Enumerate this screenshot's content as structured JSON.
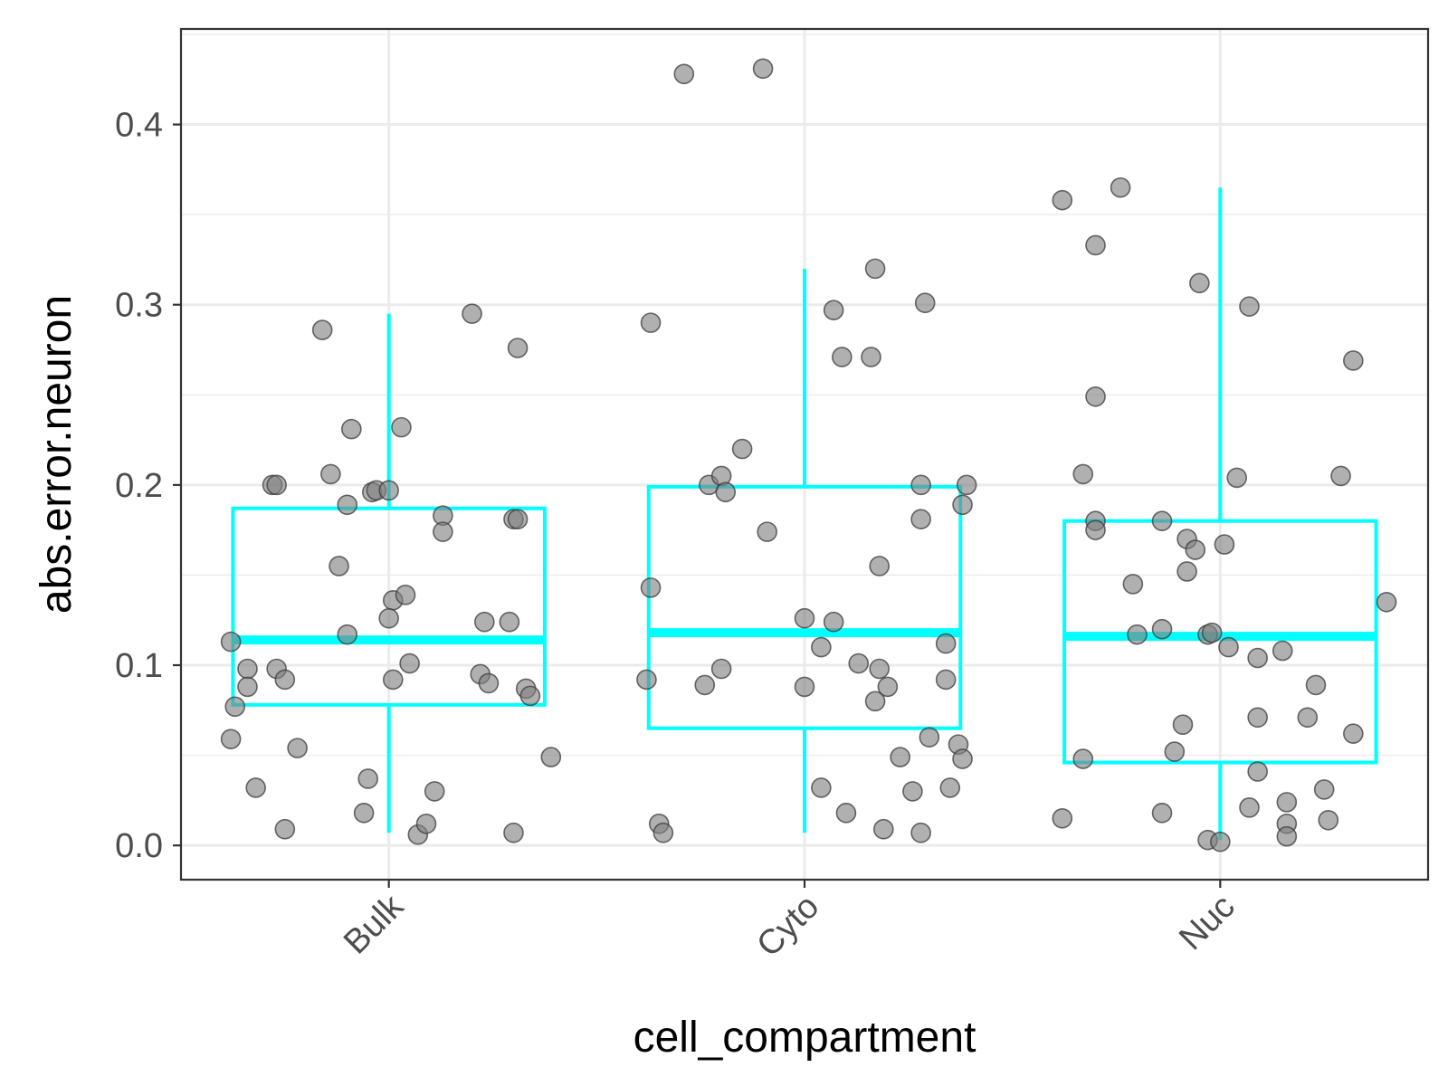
{
  "chart_data": {
    "type": "boxplot-jitter",
    "xlabel": "cell_compartment",
    "ylabel": "abs.error.neuron",
    "categories": [
      "Bulk",
      "Cyto",
      "Nuc"
    ],
    "ylim": [
      -0.019,
      0.453
    ],
    "yticks": [
      {
        "value": 0.0,
        "label": "0.0"
      },
      {
        "value": 0.1,
        "label": "0.1"
      },
      {
        "value": 0.2,
        "label": "0.2"
      },
      {
        "value": 0.3,
        "label": "0.3"
      },
      {
        "value": 0.4,
        "label": "0.4"
      }
    ],
    "grid": true,
    "box_color": "#00FFFF",
    "point_color": "#808080",
    "boxes": [
      {
        "category": "Bulk",
        "whisker_low": 0.007,
        "q1": 0.078,
        "median": 0.114,
        "q3": 0.187,
        "whisker_high": 0.295
      },
      {
        "category": "Cyto",
        "whisker_low": 0.007,
        "q1": 0.065,
        "median": 0.118,
        "q3": 0.199,
        "whisker_high": 0.32
      },
      {
        "category": "Nuc",
        "whisker_low": 0.003,
        "q1": 0.046,
        "median": 0.116,
        "q3": 0.18,
        "whisker_high": 0.365
      }
    ],
    "points": [
      {
        "category": "Bulk",
        "jitter": -0.38,
        "y": 0.113
      },
      {
        "category": "Bulk",
        "jitter": -0.37,
        "y": 0.077
      },
      {
        "category": "Bulk",
        "jitter": -0.38,
        "y": 0.059
      },
      {
        "category": "Bulk",
        "jitter": -0.34,
        "y": 0.098
      },
      {
        "category": "Bulk",
        "jitter": -0.34,
        "y": 0.088
      },
      {
        "category": "Bulk",
        "jitter": -0.32,
        "y": 0.032
      },
      {
        "category": "Bulk",
        "jitter": -0.28,
        "y": 0.2
      },
      {
        "category": "Bulk",
        "jitter": -0.27,
        "y": 0.2
      },
      {
        "category": "Bulk",
        "jitter": -0.27,
        "y": 0.098
      },
      {
        "category": "Bulk",
        "jitter": -0.25,
        "y": 0.092
      },
      {
        "category": "Bulk",
        "jitter": -0.25,
        "y": 0.009
      },
      {
        "category": "Bulk",
        "jitter": -0.22,
        "y": 0.054
      },
      {
        "category": "Bulk",
        "jitter": -0.16,
        "y": 0.286
      },
      {
        "category": "Bulk",
        "jitter": -0.14,
        "y": 0.206
      },
      {
        "category": "Bulk",
        "jitter": -0.12,
        "y": 0.155
      },
      {
        "category": "Bulk",
        "jitter": -0.1,
        "y": 0.189
      },
      {
        "category": "Bulk",
        "jitter": -0.1,
        "y": 0.117
      },
      {
        "category": "Bulk",
        "jitter": -0.09,
        "y": 0.231
      },
      {
        "category": "Bulk",
        "jitter": -0.06,
        "y": 0.018
      },
      {
        "category": "Bulk",
        "jitter": -0.05,
        "y": 0.037
      },
      {
        "category": "Bulk",
        "jitter": -0.04,
        "y": 0.196
      },
      {
        "category": "Bulk",
        "jitter": -0.03,
        "y": 0.197
      },
      {
        "category": "Bulk",
        "jitter": 0.0,
        "y": 0.197
      },
      {
        "category": "Bulk",
        "jitter": 0.01,
        "y": 0.136
      },
      {
        "category": "Bulk",
        "jitter": 0.0,
        "y": 0.126
      },
      {
        "category": "Bulk",
        "jitter": 0.01,
        "y": 0.092
      },
      {
        "category": "Bulk",
        "jitter": 0.03,
        "y": 0.232
      },
      {
        "category": "Bulk",
        "jitter": 0.04,
        "y": 0.139
      },
      {
        "category": "Bulk",
        "jitter": 0.05,
        "y": 0.101
      },
      {
        "category": "Bulk",
        "jitter": 0.07,
        "y": 0.006
      },
      {
        "category": "Bulk",
        "jitter": 0.09,
        "y": 0.012
      },
      {
        "category": "Bulk",
        "jitter": 0.11,
        "y": 0.03
      },
      {
        "category": "Bulk",
        "jitter": 0.13,
        "y": 0.183
      },
      {
        "category": "Bulk",
        "jitter": 0.13,
        "y": 0.174
      },
      {
        "category": "Bulk",
        "jitter": 0.2,
        "y": 0.295
      },
      {
        "category": "Bulk",
        "jitter": 0.22,
        "y": 0.095
      },
      {
        "category": "Bulk",
        "jitter": 0.23,
        "y": 0.124
      },
      {
        "category": "Bulk",
        "jitter": 0.24,
        "y": 0.09
      },
      {
        "category": "Bulk",
        "jitter": 0.29,
        "y": 0.124
      },
      {
        "category": "Bulk",
        "jitter": 0.3,
        "y": 0.181
      },
      {
        "category": "Bulk",
        "jitter": 0.31,
        "y": 0.276
      },
      {
        "category": "Bulk",
        "jitter": 0.31,
        "y": 0.181
      },
      {
        "category": "Bulk",
        "jitter": 0.3,
        "y": 0.007
      },
      {
        "category": "Bulk",
        "jitter": 0.33,
        "y": 0.087
      },
      {
        "category": "Bulk",
        "jitter": 0.34,
        "y": 0.083
      },
      {
        "category": "Bulk",
        "jitter": 0.39,
        "y": 0.049
      },
      {
        "category": "Cyto",
        "jitter": -0.38,
        "y": 0.092
      },
      {
        "category": "Cyto",
        "jitter": -0.37,
        "y": 0.29
      },
      {
        "category": "Cyto",
        "jitter": -0.37,
        "y": 0.143
      },
      {
        "category": "Cyto",
        "jitter": -0.35,
        "y": 0.012
      },
      {
        "category": "Cyto",
        "jitter": -0.34,
        "y": 0.007
      },
      {
        "category": "Cyto",
        "jitter": -0.29,
        "y": 0.428
      },
      {
        "category": "Cyto",
        "jitter": -0.24,
        "y": 0.089
      },
      {
        "category": "Cyto",
        "jitter": -0.23,
        "y": 0.2
      },
      {
        "category": "Cyto",
        "jitter": -0.2,
        "y": 0.205
      },
      {
        "category": "Cyto",
        "jitter": -0.2,
        "y": 0.098
      },
      {
        "category": "Cyto",
        "jitter": -0.19,
        "y": 0.196
      },
      {
        "category": "Cyto",
        "jitter": -0.15,
        "y": 0.22
      },
      {
        "category": "Cyto",
        "jitter": -0.1,
        "y": 0.431
      },
      {
        "category": "Cyto",
        "jitter": -0.09,
        "y": 0.174
      },
      {
        "category": "Cyto",
        "jitter": -0.0,
        "y": 0.126
      },
      {
        "category": "Cyto",
        "jitter": -0.0,
        "y": 0.088
      },
      {
        "category": "Cyto",
        "jitter": 0.04,
        "y": 0.11
      },
      {
        "category": "Cyto",
        "jitter": 0.04,
        "y": 0.032
      },
      {
        "category": "Cyto",
        "jitter": 0.07,
        "y": 0.297
      },
      {
        "category": "Cyto",
        "jitter": 0.07,
        "y": 0.124
      },
      {
        "category": "Cyto",
        "jitter": 0.09,
        "y": 0.271
      },
      {
        "category": "Cyto",
        "jitter": 0.1,
        "y": 0.018
      },
      {
        "category": "Cyto",
        "jitter": 0.13,
        "y": 0.101
      },
      {
        "category": "Cyto",
        "jitter": 0.16,
        "y": 0.271
      },
      {
        "category": "Cyto",
        "jitter": 0.17,
        "y": 0.32
      },
      {
        "category": "Cyto",
        "jitter": 0.18,
        "y": 0.155
      },
      {
        "category": "Cyto",
        "jitter": 0.18,
        "y": 0.098
      },
      {
        "category": "Cyto",
        "jitter": 0.17,
        "y": 0.08
      },
      {
        "category": "Cyto",
        "jitter": 0.2,
        "y": 0.088
      },
      {
        "category": "Cyto",
        "jitter": 0.19,
        "y": 0.009
      },
      {
        "category": "Cyto",
        "jitter": 0.23,
        "y": 0.049
      },
      {
        "category": "Cyto",
        "jitter": 0.26,
        "y": 0.03
      },
      {
        "category": "Cyto",
        "jitter": 0.28,
        "y": 0.007
      },
      {
        "category": "Cyto",
        "jitter": 0.28,
        "y": 0.181
      },
      {
        "category": "Cyto",
        "jitter": 0.28,
        "y": 0.2
      },
      {
        "category": "Cyto",
        "jitter": 0.29,
        "y": 0.301
      },
      {
        "category": "Cyto",
        "jitter": 0.3,
        "y": 0.06
      },
      {
        "category": "Cyto",
        "jitter": 0.34,
        "y": 0.092
      },
      {
        "category": "Cyto",
        "jitter": 0.34,
        "y": 0.112
      },
      {
        "category": "Cyto",
        "jitter": 0.35,
        "y": 0.032
      },
      {
        "category": "Cyto",
        "jitter": 0.37,
        "y": 0.056
      },
      {
        "category": "Cyto",
        "jitter": 0.38,
        "y": 0.048
      },
      {
        "category": "Cyto",
        "jitter": 0.38,
        "y": 0.189
      },
      {
        "category": "Cyto",
        "jitter": 0.39,
        "y": 0.2
      },
      {
        "category": "Nuc",
        "jitter": -0.38,
        "y": 0.358
      },
      {
        "category": "Nuc",
        "jitter": -0.38,
        "y": 0.015
      },
      {
        "category": "Nuc",
        "jitter": -0.33,
        "y": 0.206
      },
      {
        "category": "Nuc",
        "jitter": -0.33,
        "y": 0.048
      },
      {
        "category": "Nuc",
        "jitter": -0.3,
        "y": 0.333
      },
      {
        "category": "Nuc",
        "jitter": -0.3,
        "y": 0.249
      },
      {
        "category": "Nuc",
        "jitter": -0.3,
        "y": 0.18
      },
      {
        "category": "Nuc",
        "jitter": -0.3,
        "y": 0.175
      },
      {
        "category": "Nuc",
        "jitter": -0.24,
        "y": 0.365
      },
      {
        "category": "Nuc",
        "jitter": -0.21,
        "y": 0.145
      },
      {
        "category": "Nuc",
        "jitter": -0.2,
        "y": 0.117
      },
      {
        "category": "Nuc",
        "jitter": -0.14,
        "y": 0.18
      },
      {
        "category": "Nuc",
        "jitter": -0.14,
        "y": 0.12
      },
      {
        "category": "Nuc",
        "jitter": -0.14,
        "y": 0.018
      },
      {
        "category": "Nuc",
        "jitter": -0.11,
        "y": 0.052
      },
      {
        "category": "Nuc",
        "jitter": -0.09,
        "y": 0.067
      },
      {
        "category": "Nuc",
        "jitter": -0.08,
        "y": 0.17
      },
      {
        "category": "Nuc",
        "jitter": -0.08,
        "y": 0.152
      },
      {
        "category": "Nuc",
        "jitter": -0.06,
        "y": 0.164
      },
      {
        "category": "Nuc",
        "jitter": -0.05,
        "y": 0.312
      },
      {
        "category": "Nuc",
        "jitter": -0.03,
        "y": 0.117
      },
      {
        "category": "Nuc",
        "jitter": -0.02,
        "y": 0.118
      },
      {
        "category": "Nuc",
        "jitter": -0.03,
        "y": 0.003
      },
      {
        "category": "Nuc",
        "jitter": 0.0,
        "y": 0.002
      },
      {
        "category": "Nuc",
        "jitter": 0.01,
        "y": 0.167
      },
      {
        "category": "Nuc",
        "jitter": 0.02,
        "y": 0.11
      },
      {
        "category": "Nuc",
        "jitter": 0.04,
        "y": 0.204
      },
      {
        "category": "Nuc",
        "jitter": 0.07,
        "y": 0.299
      },
      {
        "category": "Nuc",
        "jitter": 0.07,
        "y": 0.021
      },
      {
        "category": "Nuc",
        "jitter": 0.09,
        "y": 0.104
      },
      {
        "category": "Nuc",
        "jitter": 0.09,
        "y": 0.041
      },
      {
        "category": "Nuc",
        "jitter": 0.09,
        "y": 0.071
      },
      {
        "category": "Nuc",
        "jitter": 0.15,
        "y": 0.108
      },
      {
        "category": "Nuc",
        "jitter": 0.16,
        "y": 0.024
      },
      {
        "category": "Nuc",
        "jitter": 0.16,
        "y": 0.012
      },
      {
        "category": "Nuc",
        "jitter": 0.16,
        "y": 0.005
      },
      {
        "category": "Nuc",
        "jitter": 0.21,
        "y": 0.071
      },
      {
        "category": "Nuc",
        "jitter": 0.23,
        "y": 0.089
      },
      {
        "category": "Nuc",
        "jitter": 0.25,
        "y": 0.031
      },
      {
        "category": "Nuc",
        "jitter": 0.26,
        "y": 0.014
      },
      {
        "category": "Nuc",
        "jitter": 0.29,
        "y": 0.205
      },
      {
        "category": "Nuc",
        "jitter": 0.32,
        "y": 0.269
      },
      {
        "category": "Nuc",
        "jitter": 0.32,
        "y": 0.062
      },
      {
        "category": "Nuc",
        "jitter": 0.4,
        "y": 0.135
      }
    ]
  }
}
